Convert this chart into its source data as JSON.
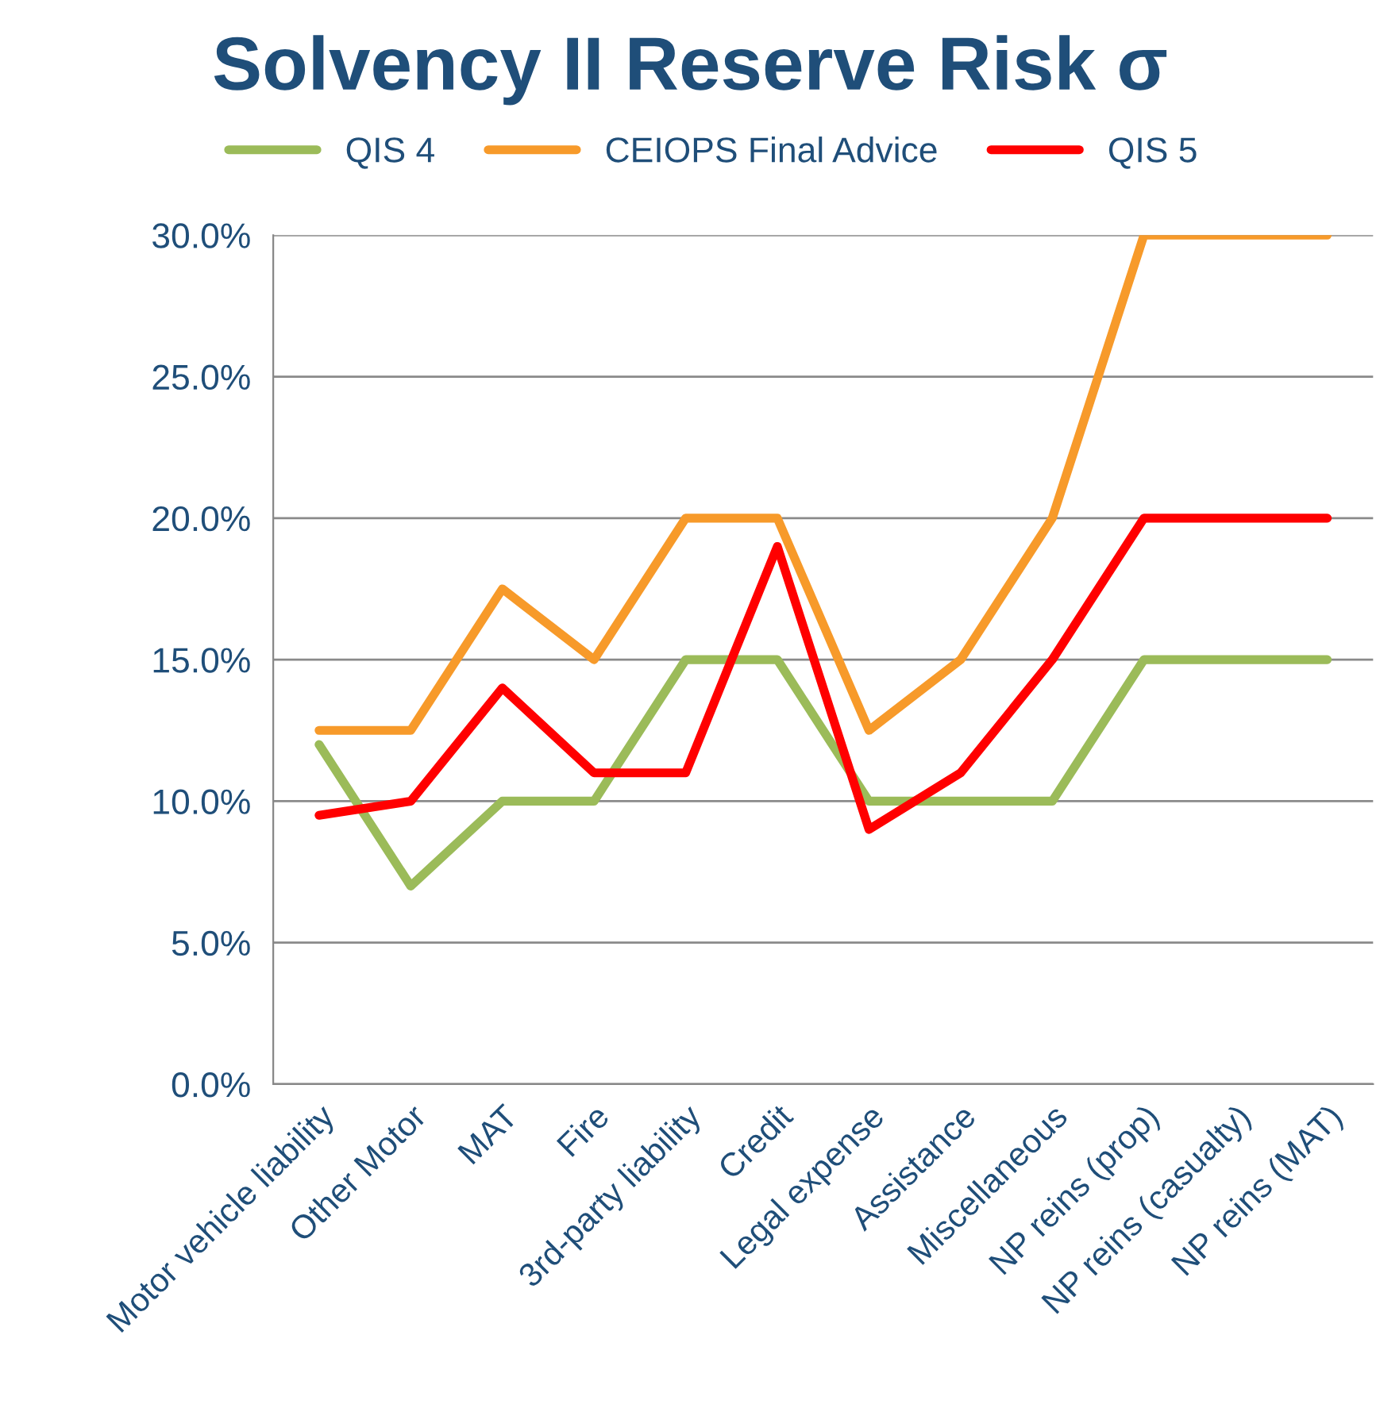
{
  "chart_data": {
    "type": "line",
    "title": "Solvency II Reserve Risk σ",
    "categories": [
      "Motor vehicle liability",
      "Other Motor",
      "MAT",
      "Fire",
      "3rd-party liability",
      "Credit",
      "Legal expense",
      "Assistance",
      "Miscellaneous",
      "NP reins (prop)",
      "NP reins (casualty)",
      "NP reins (MAT)"
    ],
    "series": [
      {
        "name": "QIS 4",
        "color": "#9bbb59",
        "values": [
          12,
          7,
          10,
          10,
          15,
          15,
          10,
          10,
          10,
          15,
          15,
          15
        ]
      },
      {
        "name": "CEIOPS Final Advice",
        "color": "#f79a2a",
        "values": [
          12.5,
          12.5,
          17.5,
          15,
          20,
          20,
          12.5,
          15,
          20,
          30,
          30,
          30
        ]
      },
      {
        "name": "QIS 5",
        "color": "#ff0000",
        "values": [
          9.5,
          10,
          14,
          11,
          11,
          19,
          9,
          11,
          15,
          20,
          20,
          20
        ]
      }
    ],
    "ylim": [
      0,
      30
    ],
    "yticks": [
      {
        "value": 0,
        "label": "0.0%"
      },
      {
        "value": 5,
        "label": "5.0%"
      },
      {
        "value": 10,
        "label": "10.0%"
      },
      {
        "value": 15,
        "label": "15.0%"
      },
      {
        "value": 20,
        "label": "20.0%"
      },
      {
        "value": 25,
        "label": "25.0%"
      },
      {
        "value": 30,
        "label": "30.0%"
      }
    ],
    "grid": "y",
    "legend": "top",
    "marker": "none",
    "line_style": "solid"
  }
}
